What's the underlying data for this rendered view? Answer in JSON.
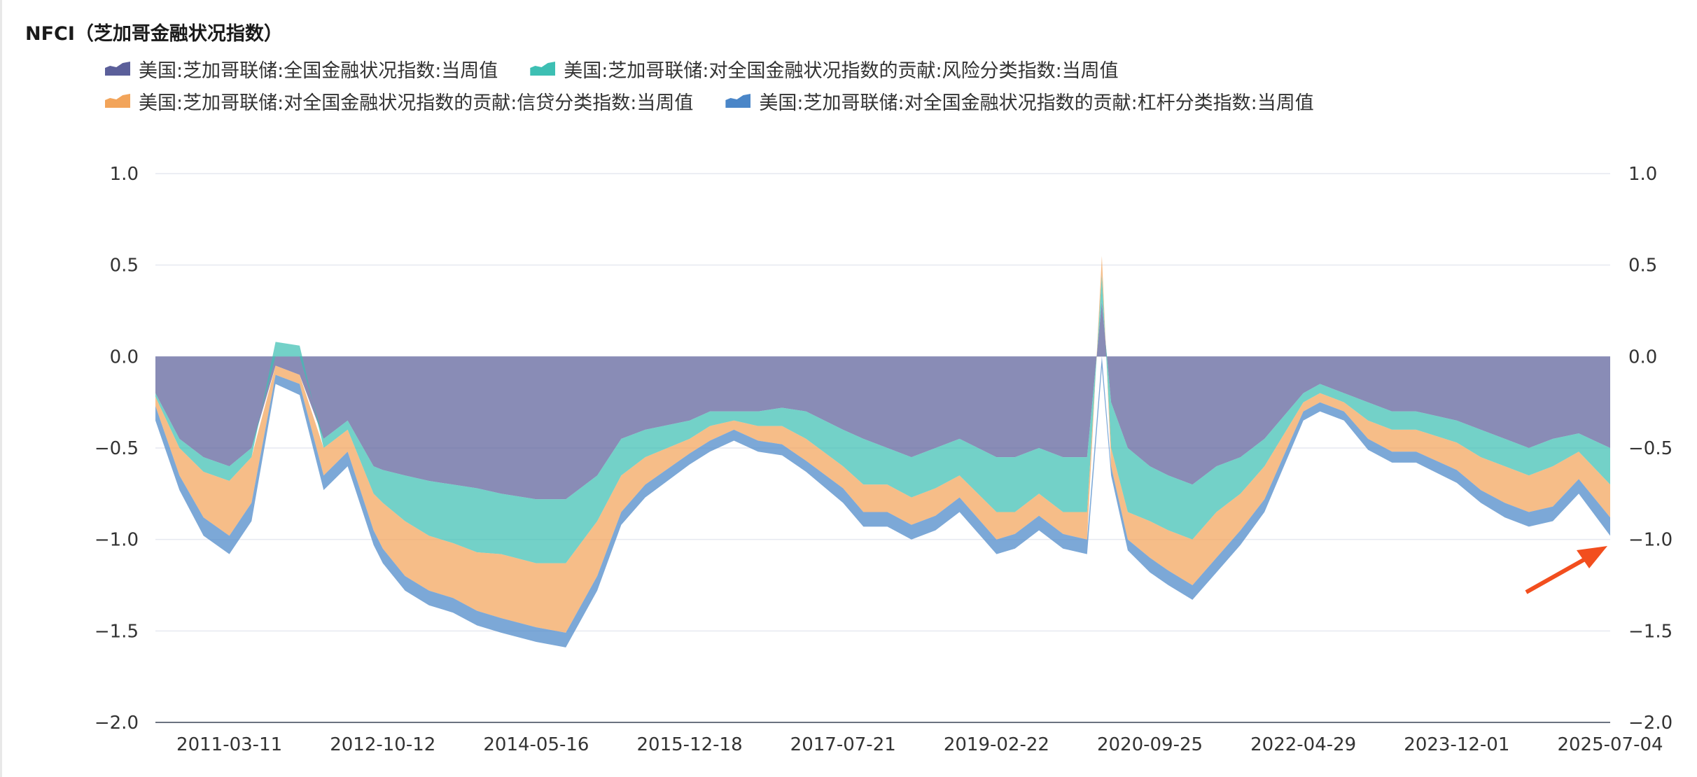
{
  "title": "NFCI（芝加哥金融状况指数）",
  "legend": [
    {
      "label": "美国:芝加哥联储:全国金融状况指数:当周值",
      "color": "#5b5f9a"
    },
    {
      "label": "美国:芝加哥联储:对全国金融状况指数的贡献:风险分类指数:当周值",
      "color": "#3dbfb3"
    },
    {
      "label": "美国:芝加哥联储:对全国金融状况指数的贡献:信贷分类指数:当周值",
      "color": "#f2a45a"
    },
    {
      "label": "美国:芝加哥联储:对全国金融状况指数的贡献:杠杆分类指数:当周值",
      "color": "#4a86c8"
    }
  ],
  "chart_data": {
    "type": "area",
    "x": [
      "2010-06-04",
      "2010-09-03",
      "2010-12-03",
      "2011-03-11",
      "2011-06-03",
      "2011-09-02",
      "2011-12-02",
      "2012-03-02",
      "2012-06-01",
      "2012-09-07",
      "2012-10-12",
      "2013-01-04",
      "2013-04-05",
      "2013-07-05",
      "2013-10-04",
      "2014-01-03",
      "2014-05-16",
      "2014-09-05",
      "2015-01-02",
      "2015-04-03",
      "2015-07-03",
      "2015-12-18",
      "2016-03-04",
      "2016-06-03",
      "2016-09-02",
      "2016-12-02",
      "2017-03-03",
      "2017-07-21",
      "2017-10-06",
      "2018-01-05",
      "2018-04-06",
      "2018-07-06",
      "2018-10-05",
      "2019-02-22",
      "2019-05-03",
      "2019-08-02",
      "2019-11-01",
      "2020-01-31",
      "2020-03-27",
      "2020-05-01",
      "2020-07-03",
      "2020-09-25",
      "2020-12-04",
      "2021-03-05",
      "2021-06-04",
      "2021-09-03",
      "2021-12-03",
      "2022-04-29",
      "2022-07-01",
      "2022-09-30",
      "2022-12-30",
      "2023-03-31",
      "2023-06-30",
      "2023-12-01",
      "2024-03-01",
      "2024-05-31",
      "2024-08-30",
      "2024-11-29",
      "2025-03-07",
      "2025-07-04"
    ],
    "x_tick_labels": [
      "2011-03-11",
      "2012-10-12",
      "2014-05-16",
      "2015-12-18",
      "2017-07-21",
      "2019-02-22",
      "2020-09-25",
      "2022-04-29",
      "2023-12-01",
      "2025-07-04"
    ],
    "series": [
      {
        "name": "美国:芝加哥联储:全国金融状况指数:当周值",
        "color": "#5b5f9a",
        "values": [
          -0.2,
          -0.45,
          -0.55,
          -0.6,
          -0.5,
          -0.05,
          -0.1,
          -0.45,
          -0.35,
          -0.6,
          -0.62,
          -0.65,
          -0.68,
          -0.7,
          -0.72,
          -0.75,
          -0.78,
          -0.78,
          -0.65,
          -0.45,
          -0.4,
          -0.35,
          -0.3,
          -0.3,
          -0.3,
          -0.28,
          -0.3,
          -0.4,
          -0.45,
          -0.5,
          -0.55,
          -0.5,
          -0.45,
          -0.55,
          -0.55,
          -0.5,
          -0.55,
          -0.55,
          0.3,
          -0.25,
          -0.5,
          -0.6,
          -0.65,
          -0.7,
          -0.6,
          -0.55,
          -0.45,
          -0.2,
          -0.15,
          -0.2,
          -0.25,
          -0.3,
          -0.3,
          -0.35,
          -0.4,
          -0.45,
          -0.5,
          -0.45,
          -0.42,
          -0.5
        ]
      },
      {
        "name": "美国:芝加哥联储:对全国金融状况指数的贡献:风险分类指数:当周值",
        "color": "#3dbfb3",
        "values": [
          -0.02,
          -0.05,
          -0.08,
          -0.08,
          -0.05,
          0.08,
          0.06,
          -0.05,
          -0.05,
          -0.15,
          -0.18,
          -0.25,
          -0.3,
          -0.32,
          -0.35,
          -0.33,
          -0.35,
          -0.35,
          -0.25,
          -0.2,
          -0.15,
          -0.1,
          -0.08,
          -0.05,
          -0.08,
          -0.1,
          -0.15,
          -0.2,
          -0.25,
          -0.2,
          -0.22,
          -0.22,
          -0.2,
          -0.3,
          -0.3,
          -0.25,
          -0.3,
          -0.3,
          0.15,
          -0.25,
          -0.35,
          -0.3,
          -0.3,
          -0.3,
          -0.25,
          -0.2,
          -0.15,
          -0.05,
          -0.05,
          -0.05,
          -0.1,
          -0.1,
          -0.1,
          -0.12,
          -0.15,
          -0.15,
          -0.15,
          -0.15,
          -0.1,
          -0.2
        ]
      },
      {
        "name": "美国:芝加哥联储:对全国金融状况指数的贡献:信贷分类指数:当周值",
        "color": "#f2a45a",
        "values": [
          -0.05,
          -0.15,
          -0.25,
          -0.3,
          -0.25,
          -0.05,
          -0.05,
          -0.15,
          -0.12,
          -0.2,
          -0.25,
          -0.3,
          -0.3,
          -0.3,
          -0.32,
          -0.35,
          -0.35,
          -0.38,
          -0.3,
          -0.2,
          -0.15,
          -0.08,
          -0.08,
          -0.05,
          -0.08,
          -0.1,
          -0.12,
          -0.12,
          -0.15,
          -0.15,
          -0.15,
          -0.15,
          -0.12,
          -0.15,
          -0.12,
          -0.12,
          -0.12,
          -0.15,
          0.1,
          -0.1,
          -0.15,
          -0.2,
          -0.22,
          -0.25,
          -0.25,
          -0.2,
          -0.18,
          -0.05,
          -0.05,
          -0.05,
          -0.1,
          -0.12,
          -0.12,
          -0.15,
          -0.18,
          -0.2,
          -0.2,
          -0.22,
          -0.15,
          -0.18
        ]
      },
      {
        "name": "美国:芝加哥联储:对全国金融状况指数的贡献:杠杆分类指数:当周值",
        "color": "#4a86c8",
        "values": [
          -0.08,
          -0.08,
          -0.1,
          -0.1,
          -0.1,
          -0.05,
          -0.06,
          -0.08,
          -0.08,
          -0.08,
          -0.08,
          -0.08,
          -0.08,
          -0.08,
          -0.08,
          -0.08,
          -0.08,
          -0.08,
          -0.08,
          -0.07,
          -0.07,
          -0.06,
          -0.06,
          -0.06,
          -0.06,
          -0.06,
          -0.06,
          -0.08,
          -0.08,
          -0.08,
          -0.08,
          -0.08,
          -0.08,
          -0.08,
          -0.08,
          -0.08,
          -0.08,
          -0.08,
          -0.06,
          -0.05,
          -0.06,
          -0.08,
          -0.08,
          -0.08,
          -0.08,
          -0.08,
          -0.07,
          -0.05,
          -0.05,
          -0.05,
          -0.06,
          -0.06,
          -0.06,
          -0.07,
          -0.07,
          -0.08,
          -0.08,
          -0.08,
          -0.08,
          -0.1
        ]
      }
    ],
    "y_ticks": [
      "1.0",
      "0.5",
      "0.0",
      "−0.5",
      "−1.0",
      "−1.5",
      "−2.0"
    ],
    "ylim": [
      -2.0,
      1.0
    ],
    "grid": true,
    "dual_y_axis": true,
    "legend_position": "top-left",
    "annotation": "red arrow pointing to the latest value"
  }
}
